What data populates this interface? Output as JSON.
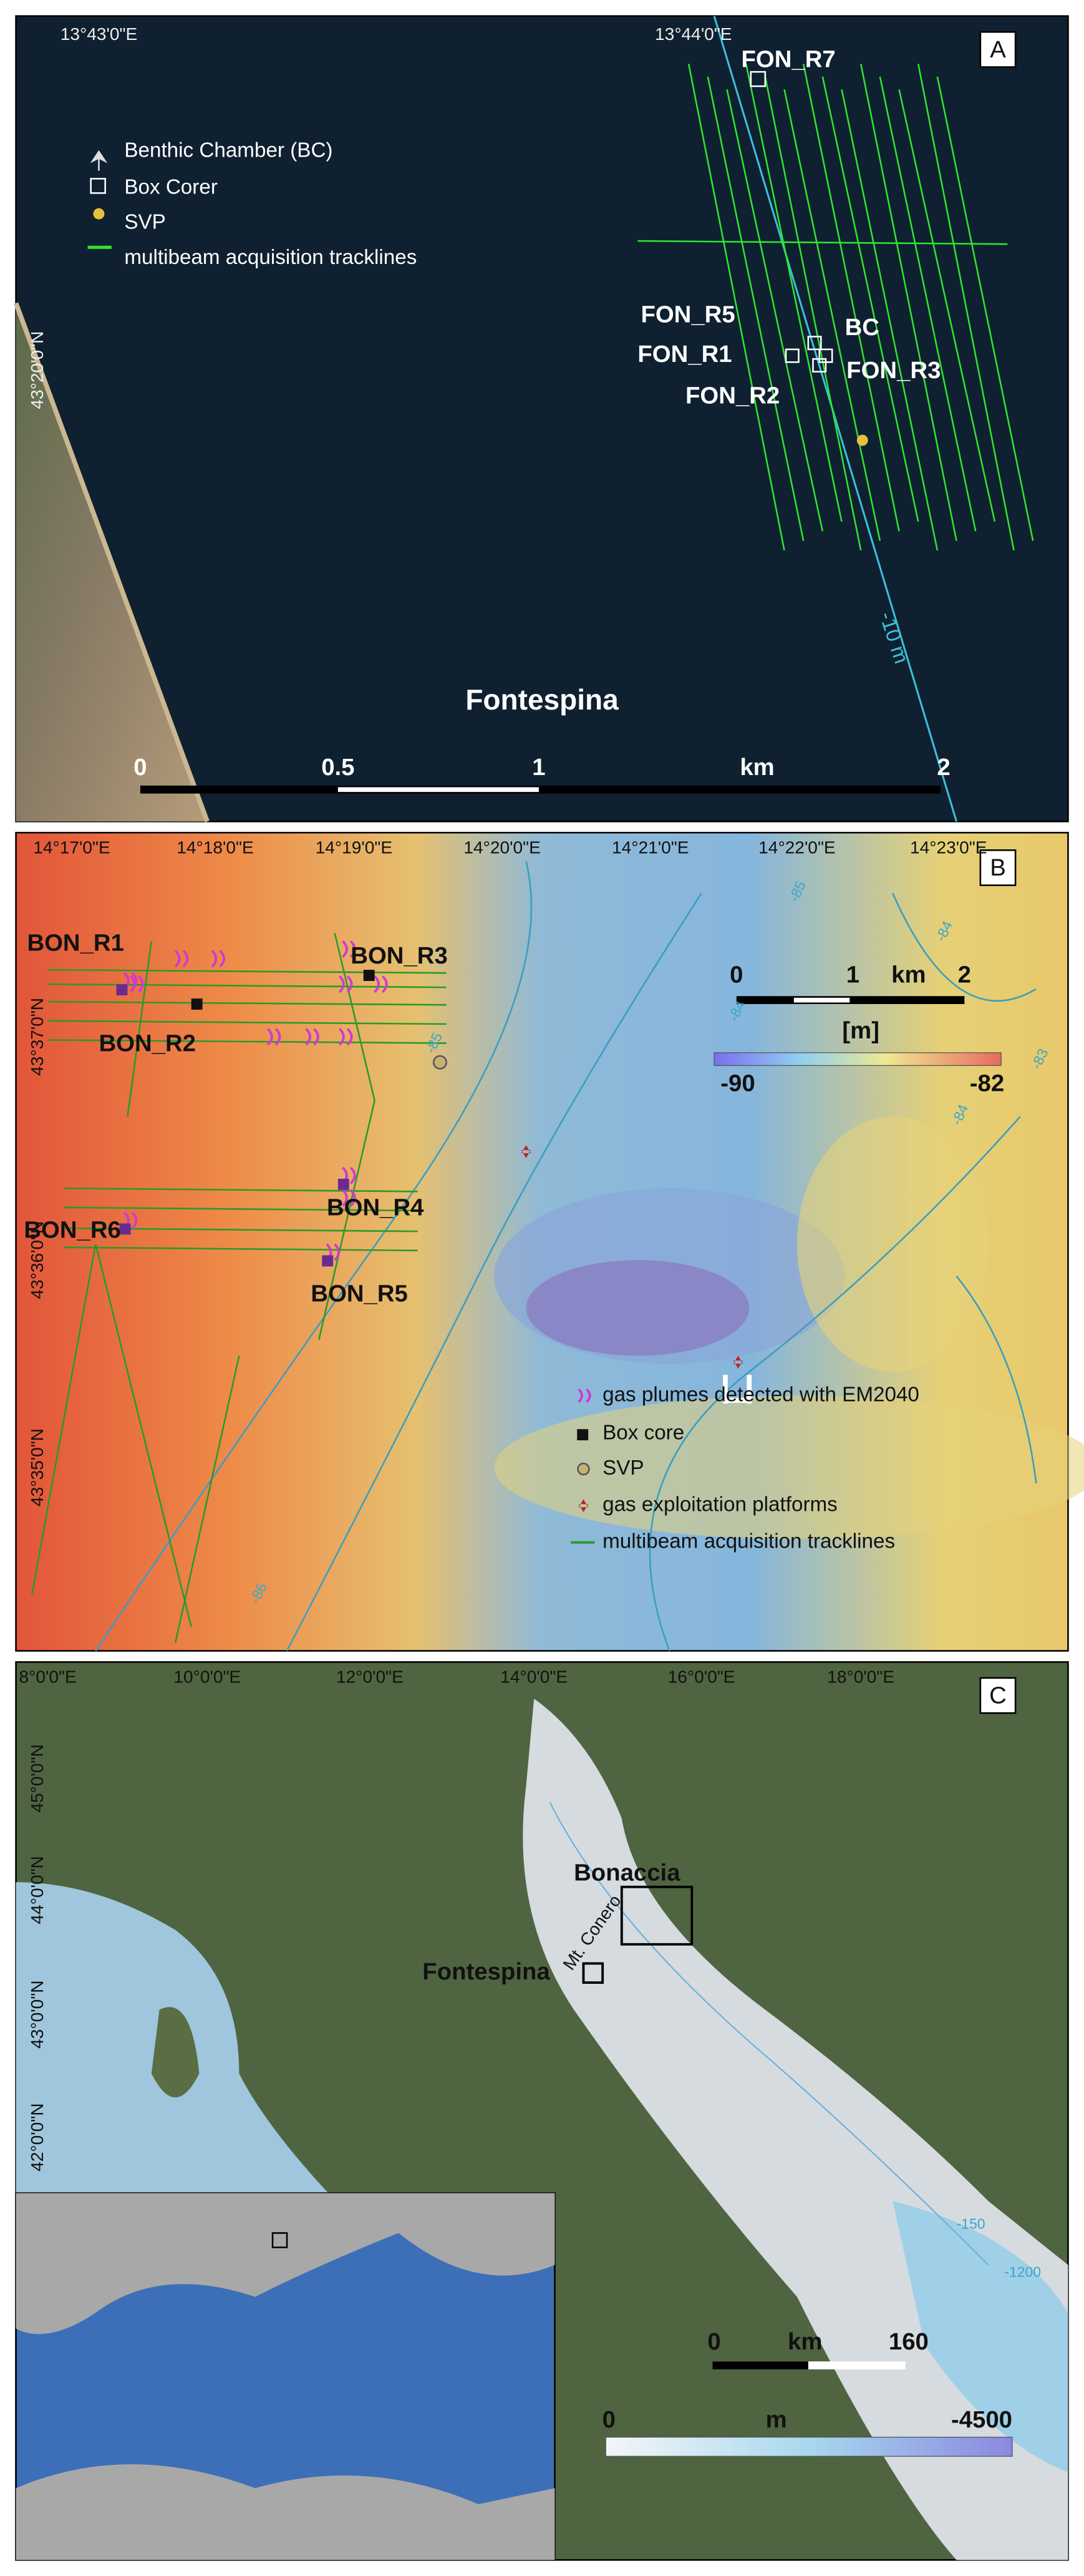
{
  "panels": {
    "a": {
      "label": "A",
      "lon_labels": [
        "13°43'0\"E",
        "13°44'0\"E"
      ],
      "lat_labels": [
        "43°20'0\"N"
      ],
      "legend": [
        "Benthic Chamber (BC)",
        "Box Corer",
        "SVP",
        "multibeam acquisition tracklines"
      ],
      "sites": [
        "FON_R7",
        "FON_R5",
        "FON_R1",
        "FON_R2",
        "BC",
        "FON_R3"
      ],
      "contour_label": "-10 m",
      "area": "Fontespina",
      "scale": [
        "0",
        "0.5",
        "1",
        "km",
        "2"
      ]
    },
    "b": {
      "label": "B",
      "lon_labels": [
        "14°17'0\"E",
        "14°18'0\"E",
        "14°19'0\"E",
        "14°20'0\"E",
        "14°21'0\"E",
        "14°22'0\"E",
        "14°23'0\"E"
      ],
      "lat_labels": [
        "43°37'0\"N",
        "43°36'0\"N",
        "43°35'0\"N"
      ],
      "sites": [
        "BON_R1",
        "BON_R3",
        "BON_R2",
        "BON_R4",
        "BON_R6",
        "BON_R5"
      ],
      "scale": [
        "0",
        "1",
        "km",
        "2"
      ],
      "colorbar": {
        "unit": "[m]",
        "min": "-90",
        "max": "-82"
      },
      "contour_labels": [
        "-85",
        "-84",
        "-83",
        "-84",
        "-84",
        "-85",
        "-86"
      ],
      "legend": [
        "gas plumes detected with EM2040",
        "Box core",
        "SVP",
        "gas exploitation platforms",
        "multibeam acquisition tracklines"
      ]
    },
    "c": {
      "label": "C",
      "lon_labels": [
        "8°0'0\"E",
        "10°0'0\"E",
        "12°0'0\"E",
        "14°0'0\"E",
        "16°0'0\"E",
        "18°0'0\"E"
      ],
      "lat_labels": [
        "45°0'0\"N",
        "44°0'0\"N",
        "43°0'0\"N",
        "42°0'0\"N"
      ],
      "places": [
        "Bonaccia",
        "Fontespina",
        "Mt. Conero"
      ],
      "contour_labels": [
        "-150",
        "-1200"
      ],
      "scale": [
        "0",
        "km",
        "160"
      ],
      "colorbar": {
        "min": "0",
        "unit": "m",
        "max": "-4500"
      }
    }
  }
}
